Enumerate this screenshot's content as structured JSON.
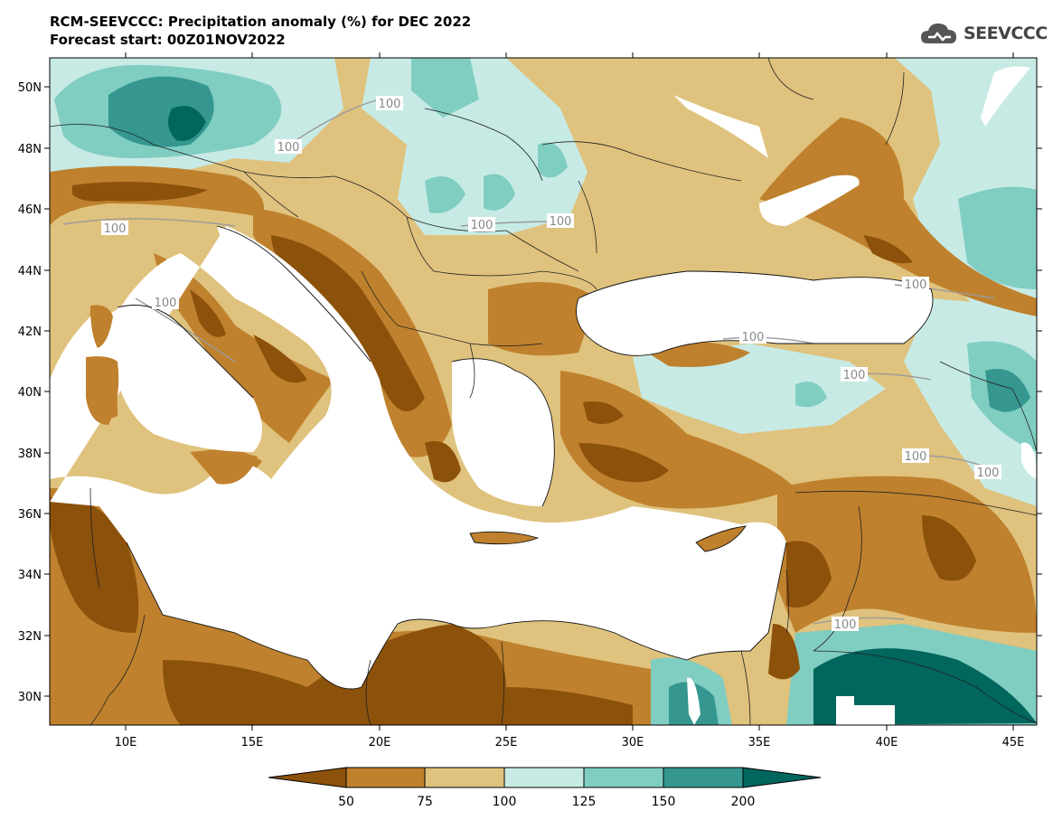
{
  "header": {
    "title_line1": "RCM-SEEVCCC: Precipitation anomaly (%) for DEC 2022",
    "title_line2": "Forecast start: 00Z01NOV2022"
  },
  "logo": {
    "text": "SEEVCCC",
    "icon": "cloud-logo-icon"
  },
  "axes": {
    "lat_labels": [
      "50N",
      "48N",
      "46N",
      "44N",
      "42N",
      "40N",
      "38N",
      "36N",
      "34N",
      "32N",
      "30N"
    ],
    "lon_labels": [
      "10E",
      "15E",
      "20E",
      "25E",
      "30E",
      "35E",
      "40E",
      "45E"
    ]
  },
  "contour_labels": [
    "100",
    "100",
    "100",
    "100",
    "100",
    "100",
    "100",
    "100",
    "100",
    "100",
    "100",
    "100"
  ],
  "colorbar": {
    "labels": [
      "50",
      "75",
      "100",
      "125",
      "150",
      "200"
    ],
    "colors": [
      "#8c510a",
      "#bf812d",
      "#dfc27d",
      "#c7eae5",
      "#80cdc1",
      "#35978f",
      "#01665e"
    ]
  },
  "palette": {
    "sea": "#ffffff",
    "very_dry": "#8c510a",
    "dry": "#bf812d",
    "slightly_dry": "#dfc27d",
    "slightly_wet": "#c7eae5",
    "wet": "#80cdc1",
    "very_wet": "#35978f",
    "extreme_wet": "#01665e"
  }
}
